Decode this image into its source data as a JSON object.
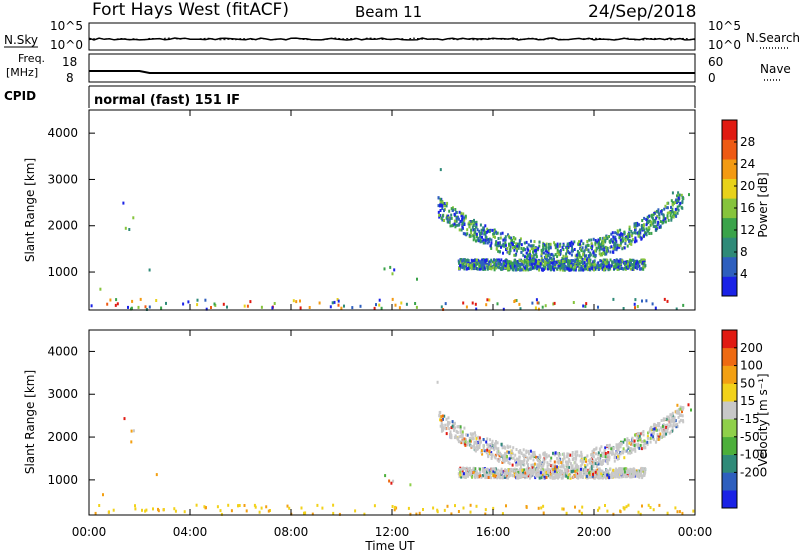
{
  "header": {
    "title": "Fort Hays West (fitACF)",
    "beam": "Beam 11",
    "date": "24/Sep/2018"
  },
  "meta_panels": {
    "nsky_label": "N.Sky",
    "nsky_ticks": [
      "10^5",
      "10^0"
    ],
    "nsearch_label": "N.Search",
    "nsearch_ticks": [
      "10^5",
      "10^0"
    ],
    "freq_label_1": "Freq.",
    "freq_label_2": "[MHz]",
    "freq_ticks": [
      "18",
      "8"
    ],
    "nave_label": "Nave",
    "nave_ticks": [
      "60",
      "0"
    ],
    "cpid_label": "CPID",
    "cpid_text": "normal (fast) 151 IF"
  },
  "chart_data": [
    {
      "type": "heatmap",
      "name": "power",
      "ylabel": "Slant Range [km]",
      "xlabel": "Time UT",
      "xlim": [
        0,
        24
      ],
      "ylim": [
        180,
        4500
      ],
      "x_ticks": [
        "00:00",
        "04:00",
        "08:00",
        "12:00",
        "16:00",
        "20:00",
        "00:00"
      ],
      "y_ticks": [
        "1000",
        "2000",
        "3000",
        "4000"
      ],
      "colorbar": {
        "label": "Power [dB]",
        "range": [
          0,
          32
        ],
        "ticks": [
          "4",
          "8",
          "12",
          "16",
          "20",
          "24",
          "28"
        ],
        "colors": [
          "#1a22e6",
          "#2e5fbe",
          "#2f8a78",
          "#3aa34a",
          "#86c43c",
          "#e8d21a",
          "#f39a12",
          "#ee5a14",
          "#e01a12"
        ]
      }
    },
    {
      "type": "heatmap",
      "name": "velocity",
      "ylabel": "Slant Range [km]",
      "xlabel": "Time UT",
      "xlim": [
        0,
        24
      ],
      "ylim": [
        180,
        4500
      ],
      "x_ticks": [
        "00:00",
        "04:00",
        "08:00",
        "12:00",
        "16:00",
        "20:00",
        "00:00"
      ],
      "y_ticks": [
        "1000",
        "2000",
        "3000",
        "4000"
      ],
      "colorbar": {
        "label": "Velocity [m s⁻¹]",
        "ticks": [
          "200",
          "100",
          "50",
          "15",
          "-15",
          "-50",
          "-100",
          "-200"
        ],
        "colors": [
          "#1a22e6",
          "#2e5fbe",
          "#2f8a78",
          "#4caf3a",
          "#8fd04a",
          "#c8c8c8",
          "#f2d21a",
          "#f3a012",
          "#ee6a12",
          "#e01a12"
        ]
      }
    }
  ],
  "colors": {
    "ground": "#b4b4b4"
  }
}
